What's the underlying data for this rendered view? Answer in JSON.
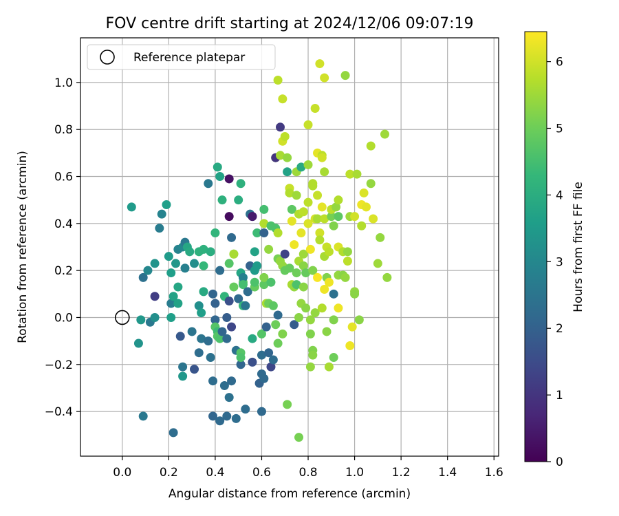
{
  "chart_data": {
    "type": "scatter",
    "title": "FOV centre drift starting at 2024/12/06 09:07:19",
    "xlabel": "Angular distance from reference (arcmin)",
    "ylabel": "Rotation from reference (arcmin)",
    "xlim": [
      -0.18,
      1.62
    ],
    "ylim": [
      -0.59,
      1.19
    ],
    "xticks": [
      0.0,
      0.2,
      0.4,
      0.6,
      0.8,
      1.0,
      1.2,
      1.4,
      1.6
    ],
    "xtick_labels": [
      "0.0",
      "0.2",
      "0.4",
      "0.6",
      "0.8",
      "1.0",
      "1.2",
      "1.4",
      "1.6"
    ],
    "yticks": [
      -0.4,
      -0.2,
      0.0,
      0.2,
      0.4,
      0.6,
      0.8,
      1.0
    ],
    "ytick_labels": [
      "−0.4",
      "−0.2",
      "0.0",
      "0.2",
      "0.4",
      "0.6",
      "0.8",
      "1.0"
    ],
    "grid": true,
    "legend": {
      "position": "top-left",
      "label": "Reference platepar"
    },
    "reference_point": {
      "x": 0.0,
      "y": 0.0
    },
    "colorbar": {
      "label": "Hours from first FF file",
      "range": [
        0,
        6.45
      ],
      "ticks": [
        0,
        1,
        2,
        3,
        4,
        5,
        6
      ],
      "tick_labels": [
        "0",
        "1",
        "2",
        "3",
        "4",
        "5",
        "6"
      ],
      "colormap": "viridis"
    },
    "colors": {
      "viridis": [
        "#440154",
        "#482878",
        "#3e4989",
        "#31688e",
        "#26828e",
        "#1f9e89",
        "#35b779",
        "#6ece58",
        "#b5de2b",
        "#fde725"
      ],
      "grid": "#b0b0b0",
      "axes": "#000000"
    },
    "points": [
      {
        "x": 0.04,
        "y": 0.47,
        "h": 3.5
      },
      {
        "x": 0.08,
        "y": -0.01,
        "h": 3.4
      },
      {
        "x": 0.07,
        "y": -0.11,
        "h": 3.3
      },
      {
        "x": 0.09,
        "y": -0.42,
        "h": 2.6
      },
      {
        "x": 0.09,
        "y": 0.17,
        "h": 2.4
      },
      {
        "x": 0.11,
        "y": 0.2,
        "h": 3.0
      },
      {
        "x": 0.12,
        "y": -0.02,
        "h": 2.6
      },
      {
        "x": 0.14,
        "y": 0.09,
        "h": 1.2
      },
      {
        "x": 0.14,
        "y": 0.23,
        "h": 3.3
      },
      {
        "x": 0.14,
        "y": 0.0,
        "h": 3.2
      },
      {
        "x": 0.16,
        "y": 0.38,
        "h": 2.7
      },
      {
        "x": 0.17,
        "y": 0.44,
        "h": 2.9
      },
      {
        "x": 0.19,
        "y": 0.48,
        "h": 3.6
      },
      {
        "x": 0.2,
        "y": 0.26,
        "h": 3.5
      },
      {
        "x": 0.21,
        "y": 0.19,
        "h": 3.6
      },
      {
        "x": 0.21,
        "y": 0.06,
        "h": 2.7
      },
      {
        "x": 0.22,
        "y": 0.09,
        "h": 3.7
      },
      {
        "x": 0.21,
        "y": 0.0,
        "h": 3.6
      },
      {
        "x": 0.22,
        "y": -0.49,
        "h": 2.3
      },
      {
        "x": 0.23,
        "y": 0.23,
        "h": 3.4
      },
      {
        "x": 0.24,
        "y": 0.13,
        "h": 3.8
      },
      {
        "x": 0.24,
        "y": 0.06,
        "h": 3.7
      },
      {
        "x": 0.24,
        "y": 0.29,
        "h": 2.9
      },
      {
        "x": 0.25,
        "y": -0.08,
        "h": 1.8
      },
      {
        "x": 0.26,
        "y": -0.21,
        "h": 2.5
      },
      {
        "x": 0.26,
        "y": -0.25,
        "h": 3.4
      },
      {
        "x": 0.26,
        "y": 0.3,
        "h": 3.0
      },
      {
        "x": 0.27,
        "y": 0.32,
        "h": 2.6
      },
      {
        "x": 0.27,
        "y": 0.21,
        "h": 2.8
      },
      {
        "x": 0.28,
        "y": 0.3,
        "h": 3.8
      },
      {
        "x": 0.29,
        "y": 0.28,
        "h": 3.9
      },
      {
        "x": 0.3,
        "y": -0.06,
        "h": 2.5
      },
      {
        "x": 0.31,
        "y": 0.23,
        "h": 3.2
      },
      {
        "x": 0.31,
        "y": -0.22,
        "h": 1.7
      },
      {
        "x": 0.33,
        "y": -0.15,
        "h": 2.3
      },
      {
        "x": 0.33,
        "y": 0.05,
        "h": 3.2
      },
      {
        "x": 0.33,
        "y": 0.28,
        "h": 4.1
      },
      {
        "x": 0.34,
        "y": 0.02,
        "h": 3.6
      },
      {
        "x": 0.34,
        "y": -0.09,
        "h": 2.5
      },
      {
        "x": 0.35,
        "y": 0.22,
        "h": 4.3
      },
      {
        "x": 0.35,
        "y": 0.29,
        "h": 4.1
      },
      {
        "x": 0.35,
        "y": 0.11,
        "h": 3.9
      },
      {
        "x": 0.37,
        "y": -0.1,
        "h": 2.3
      },
      {
        "x": 0.37,
        "y": 0.57,
        "h": 2.6
      },
      {
        "x": 0.38,
        "y": -0.17,
        "h": 2.4
      },
      {
        "x": 0.38,
        "y": 0.28,
        "h": 4.0
      },
      {
        "x": 0.39,
        "y": 0.1,
        "h": 2.1
      },
      {
        "x": 0.39,
        "y": -0.27,
        "h": 2.3
      },
      {
        "x": 0.4,
        "y": 0.36,
        "h": 4.2
      },
      {
        "x": 0.39,
        "y": -0.42,
        "h": 2.1
      },
      {
        "x": 0.4,
        "y": 0.06,
        "h": 2.0
      },
      {
        "x": 0.4,
        "y": -0.01,
        "h": 2.1
      },
      {
        "x": 0.4,
        "y": -0.04,
        "h": 4.7
      },
      {
        "x": 0.41,
        "y": -0.06,
        "h": 4.4
      },
      {
        "x": 0.41,
        "y": -0.08,
        "h": 4.7
      },
      {
        "x": 0.41,
        "y": 0.64,
        "h": 3.9
      },
      {
        "x": 0.42,
        "y": 0.6,
        "h": 3.7
      },
      {
        "x": 0.42,
        "y": 0.2,
        "h": 2.3
      },
      {
        "x": 0.42,
        "y": -0.09,
        "h": 4.6
      },
      {
        "x": 0.42,
        "y": -0.44,
        "h": 2.2
      },
      {
        "x": 0.43,
        "y": -0.06,
        "h": 2.1
      },
      {
        "x": 0.43,
        "y": 0.5,
        "h": 4.1
      },
      {
        "x": 0.44,
        "y": 0.09,
        "h": 4.2
      },
      {
        "x": 0.44,
        "y": -0.29,
        "h": 2.3
      },
      {
        "x": 0.45,
        "y": -0.09,
        "h": 2.2
      },
      {
        "x": 0.45,
        "y": 0.0,
        "h": 1.9
      },
      {
        "x": 0.45,
        "y": -0.42,
        "h": 2.2
      },
      {
        "x": 0.46,
        "y": 0.59,
        "h": 0.3
      },
      {
        "x": 0.46,
        "y": 0.43,
        "h": 0.2
      },
      {
        "x": 0.46,
        "y": 0.23,
        "h": 4.7
      },
      {
        "x": 0.46,
        "y": 0.07,
        "h": 1.6
      },
      {
        "x": 0.46,
        "y": -0.34,
        "h": 2.4
      },
      {
        "x": 0.47,
        "y": 0.34,
        "h": 2.2
      },
      {
        "x": 0.47,
        "y": -0.04,
        "h": 1.4
      },
      {
        "x": 0.47,
        "y": -0.27,
        "h": 2.2
      },
      {
        "x": 0.48,
        "y": 0.27,
        "h": 4.8
      },
      {
        "x": 0.48,
        "y": 0.13,
        "h": 4.9
      },
      {
        "x": 0.48,
        "y": 0.27,
        "h": 5.6
      },
      {
        "x": 0.49,
        "y": -0.43,
        "h": 2.3
      },
      {
        "x": 0.49,
        "y": -0.14,
        "h": 2.4
      },
      {
        "x": 0.5,
        "y": 0.5,
        "h": 4.0
      },
      {
        "x": 0.5,
        "y": 0.08,
        "h": 2.2
      },
      {
        "x": 0.51,
        "y": 0.57,
        "h": 4.1
      },
      {
        "x": 0.51,
        "y": -0.2,
        "h": 2.1
      },
      {
        "x": 0.51,
        "y": 0.19,
        "h": 3.8
      },
      {
        "x": 0.51,
        "y": -0.15,
        "h": 4.7
      },
      {
        "x": 0.51,
        "y": -0.17,
        "h": 4.6
      },
      {
        "x": 0.52,
        "y": 0.15,
        "h": 4.8
      },
      {
        "x": 0.52,
        "y": 0.17,
        "h": 2.8
      },
      {
        "x": 0.52,
        "y": 0.14,
        "h": 4.5
      },
      {
        "x": 0.52,
        "y": 0.05,
        "h": 4.3
      },
      {
        "x": 0.53,
        "y": -0.39,
        "h": 2.3
      },
      {
        "x": 0.53,
        "y": 0.05,
        "h": 2.5
      },
      {
        "x": 0.54,
        "y": 0.11,
        "h": 2.3
      },
      {
        "x": 0.55,
        "y": 0.44,
        "h": 2.4
      },
      {
        "x": 0.55,
        "y": 0.22,
        "h": 2.0
      },
      {
        "x": 0.56,
        "y": 0.43,
        "h": 0.8
      },
      {
        "x": 0.56,
        "y": 0.43,
        "h": 0.5
      },
      {
        "x": 0.56,
        "y": -0.19,
        "h": 1.6
      },
      {
        "x": 0.56,
        "y": -0.09,
        "h": 3.9
      },
      {
        "x": 0.57,
        "y": 0.2,
        "h": 3.5
      },
      {
        "x": 0.57,
        "y": 0.28,
        "h": 3.7
      },
      {
        "x": 0.57,
        "y": 0.13,
        "h": 4.9
      },
      {
        "x": 0.57,
        "y": 0.15,
        "h": 4.6
      },
      {
        "x": 0.58,
        "y": 0.36,
        "h": 4.4
      },
      {
        "x": 0.58,
        "y": 0.22,
        "h": 3.5
      },
      {
        "x": 0.59,
        "y": -0.28,
        "h": 2.0
      },
      {
        "x": 0.6,
        "y": -0.4,
        "h": 2.2
      },
      {
        "x": 0.6,
        "y": -0.24,
        "h": 2.2
      },
      {
        "x": 0.6,
        "y": -0.07,
        "h": 4.7
      },
      {
        "x": 0.6,
        "y": -0.16,
        "h": 2.3
      },
      {
        "x": 0.61,
        "y": 0.14,
        "h": 4.8
      },
      {
        "x": 0.61,
        "y": 0.46,
        "h": 4.5
      },
      {
        "x": 0.61,
        "y": 0.4,
        "h": 5.7
      },
      {
        "x": 0.61,
        "y": 0.36,
        "h": 2.0
      },
      {
        "x": 0.61,
        "y": 0.17,
        "h": 5.2
      },
      {
        "x": 0.61,
        "y": -0.26,
        "h": 2.2
      },
      {
        "x": 0.62,
        "y": -0.04,
        "h": 2.0
      },
      {
        "x": 0.62,
        "y": 0.06,
        "h": 5.6
      },
      {
        "x": 0.63,
        "y": 0.06,
        "h": 5.0
      },
      {
        "x": 0.63,
        "y": -0.15,
        "h": 2.1
      },
      {
        "x": 0.63,
        "y": 0.29,
        "h": 5.4
      },
      {
        "x": 0.64,
        "y": -0.21,
        "h": 1.4
      },
      {
        "x": 0.64,
        "y": 0.15,
        "h": 4.6
      },
      {
        "x": 0.64,
        "y": 0.39,
        "h": 4.6
      },
      {
        "x": 0.65,
        "y": -0.18,
        "h": 2.3
      },
      {
        "x": 0.65,
        "y": 0.05,
        "h": 4.8
      },
      {
        "x": 0.66,
        "y": 0.68,
        "h": 5.4
      },
      {
        "x": 0.66,
        "y": 0.38,
        "h": 4.6
      },
      {
        "x": 0.66,
        "y": -0.03,
        "h": 5.0
      },
      {
        "x": 0.66,
        "y": 0.68,
        "h": 1.0
      },
      {
        "x": 0.67,
        "y": 0.25,
        "h": 5.1
      },
      {
        "x": 0.67,
        "y": 0.36,
        "h": 5.7
      },
      {
        "x": 0.67,
        "y": -0.11,
        "h": 5.0
      },
      {
        "x": 0.67,
        "y": 0.01,
        "h": 2.2
      },
      {
        "x": 0.67,
        "y": 1.01,
        "h": 5.8
      },
      {
        "x": 0.68,
        "y": 0.81,
        "h": 1.1
      },
      {
        "x": 0.68,
        "y": 0.24,
        "h": 5.4
      },
      {
        "x": 0.68,
        "y": 0.69,
        "h": 5.6
      },
      {
        "x": 0.69,
        "y": 0.75,
        "h": 6.0
      },
      {
        "x": 0.69,
        "y": 0.93,
        "h": 5.9
      },
      {
        "x": 0.69,
        "y": -0.07,
        "h": 5.2
      },
      {
        "x": 0.69,
        "y": 0.22,
        "h": 5.4
      },
      {
        "x": 0.7,
        "y": 0.2,
        "h": 4.9
      },
      {
        "x": 0.7,
        "y": 0.77,
        "h": 5.8
      },
      {
        "x": 0.7,
        "y": 0.27,
        "h": 1.3
      },
      {
        "x": 0.71,
        "y": 0.68,
        "h": 5.4
      },
      {
        "x": 0.71,
        "y": -0.37,
        "h": 5.1
      },
      {
        "x": 0.71,
        "y": 0.62,
        "h": 3.7
      },
      {
        "x": 0.72,
        "y": 0.55,
        "h": 5.9
      },
      {
        "x": 0.72,
        "y": 0.53,
        "h": 5.7
      },
      {
        "x": 0.72,
        "y": 0.21,
        "h": 4.9
      },
      {
        "x": 0.73,
        "y": 0.46,
        "h": 4.8
      },
      {
        "x": 0.73,
        "y": 0.41,
        "h": 6.2
      },
      {
        "x": 0.73,
        "y": 0.14,
        "h": 5.6
      },
      {
        "x": 0.74,
        "y": 0.31,
        "h": 6.3
      },
      {
        "x": 0.74,
        "y": -0.03,
        "h": 1.9
      },
      {
        "x": 0.74,
        "y": 0.13,
        "h": 5.4
      },
      {
        "x": 0.75,
        "y": 0.62,
        "h": 5.5
      },
      {
        "x": 0.75,
        "y": 0.19,
        "h": 5.0
      },
      {
        "x": 0.75,
        "y": 0.14,
        "h": 4.6
      },
      {
        "x": 0.75,
        "y": 0.52,
        "h": 5.5
      },
      {
        "x": 0.76,
        "y": -0.51,
        "h": 5.1
      },
      {
        "x": 0.76,
        "y": 0.0,
        "h": 5.3
      },
      {
        "x": 0.76,
        "y": 0.24,
        "h": 5.6
      },
      {
        "x": 0.76,
        "y": 0.44,
        "h": 5.7
      },
      {
        "x": 0.77,
        "y": 0.06,
        "h": 5.4
      },
      {
        "x": 0.77,
        "y": 0.64,
        "h": 3.9
      },
      {
        "x": 0.77,
        "y": 0.36,
        "h": 6.2
      },
      {
        "x": 0.78,
        "y": 0.22,
        "h": 5.3
      },
      {
        "x": 0.78,
        "y": 0.45,
        "h": 5.8
      },
      {
        "x": 0.78,
        "y": 0.27,
        "h": 5.5
      },
      {
        "x": 0.78,
        "y": 0.13,
        "h": 5.3
      },
      {
        "x": 0.79,
        "y": 0.04,
        "h": 5.3
      },
      {
        "x": 0.79,
        "y": 0.19,
        "h": 4.9
      },
      {
        "x": 0.8,
        "y": 0.65,
        "h": 5.5
      },
      {
        "x": 0.8,
        "y": 0.82,
        "h": 5.9
      },
      {
        "x": 0.8,
        "y": 0.49,
        "h": 5.8
      },
      {
        "x": 0.8,
        "y": 0.4,
        "h": 6.1
      },
      {
        "x": 0.81,
        "y": -0.07,
        "h": 5.2
      },
      {
        "x": 0.81,
        "y": 0.29,
        "h": 6.3
      },
      {
        "x": 0.81,
        "y": -0.21,
        "h": 5.4
      },
      {
        "x": 0.81,
        "y": -0.01,
        "h": 5.4
      },
      {
        "x": 0.82,
        "y": 0.57,
        "h": 5.7
      },
      {
        "x": 0.82,
        "y": -0.14,
        "h": 5.2
      },
      {
        "x": 0.82,
        "y": -0.16,
        "h": 5.3
      },
      {
        "x": 0.82,
        "y": 0.2,
        "h": 5.2
      },
      {
        "x": 0.82,
        "y": 0.56,
        "h": 5.7
      },
      {
        "x": 0.83,
        "y": 0.89,
        "h": 5.9
      },
      {
        "x": 0.83,
        "y": 0.42,
        "h": 6.0
      },
      {
        "x": 0.83,
        "y": 0.02,
        "h": 5.4
      },
      {
        "x": 0.84,
        "y": 0.17,
        "h": 6.4
      },
      {
        "x": 0.84,
        "y": 0.7,
        "h": 6.2
      },
      {
        "x": 0.84,
        "y": 0.52,
        "h": 5.9
      },
      {
        "x": 0.84,
        "y": 0.42,
        "h": 5.6
      },
      {
        "x": 0.85,
        "y": 1.08,
        "h": 6.0
      },
      {
        "x": 0.85,
        "y": 0.36,
        "h": 6.0
      },
      {
        "x": 0.85,
        "y": 0.33,
        "h": 5.7
      },
      {
        "x": 0.86,
        "y": 0.47,
        "h": 6.2
      },
      {
        "x": 0.86,
        "y": 0.04,
        "h": 5.7
      },
      {
        "x": 0.86,
        "y": 0.69,
        "h": 5.8
      },
      {
        "x": 0.86,
        "y": 0.68,
        "h": 6.0
      },
      {
        "x": 0.87,
        "y": 1.02,
        "h": 6.0
      },
      {
        "x": 0.87,
        "y": 0.62,
        "h": 5.6
      },
      {
        "x": 0.87,
        "y": 0.12,
        "h": 6.3
      },
      {
        "x": 0.87,
        "y": 0.42,
        "h": 5.8
      },
      {
        "x": 0.87,
        "y": 0.26,
        "h": 5.6
      },
      {
        "x": 0.88,
        "y": -0.06,
        "h": 5.3
      },
      {
        "x": 0.88,
        "y": 0.17,
        "h": 5.2
      },
      {
        "x": 0.88,
        "y": 0.3,
        "h": 5.9
      },
      {
        "x": 0.89,
        "y": -0.21,
        "h": 5.6
      },
      {
        "x": 0.89,
        "y": 0.28,
        "h": 5.8
      },
      {
        "x": 0.89,
        "y": 0.15,
        "h": 6.3
      },
      {
        "x": 0.9,
        "y": 0.43,
        "h": 5.1
      },
      {
        "x": 0.9,
        "y": 0.46,
        "h": 5.8
      },
      {
        "x": 0.91,
        "y": -0.01,
        "h": 5.2
      },
      {
        "x": 0.91,
        "y": 0.39,
        "h": 5.2
      },
      {
        "x": 0.91,
        "y": -0.17,
        "h": 5.0
      },
      {
        "x": 0.91,
        "y": 0.1,
        "h": 2.4
      },
      {
        "x": 0.92,
        "y": 0.47,
        "h": 5.4
      },
      {
        "x": 0.93,
        "y": 0.04,
        "h": 6.3
      },
      {
        "x": 0.93,
        "y": 0.43,
        "h": 4.8
      },
      {
        "x": 0.93,
        "y": 0.5,
        "h": 5.7
      },
      {
        "x": 0.93,
        "y": 0.3,
        "h": 6.1
      },
      {
        "x": 0.93,
        "y": 0.18,
        "h": 5.4
      },
      {
        "x": 0.95,
        "y": 0.18,
        "h": 5.3
      },
      {
        "x": 0.95,
        "y": 0.28,
        "h": 5.7
      },
      {
        "x": 0.96,
        "y": 1.03,
        "h": 5.4
      },
      {
        "x": 0.96,
        "y": 0.17,
        "h": 5.4
      },
      {
        "x": 0.97,
        "y": 0.28,
        "h": 5.4
      },
      {
        "x": 0.97,
        "y": 0.24,
        "h": 5.8
      },
      {
        "x": 0.98,
        "y": -0.12,
        "h": 6.3
      },
      {
        "x": 0.98,
        "y": 0.61,
        "h": 5.8
      },
      {
        "x": 0.98,
        "y": 0.43,
        "h": 5.5
      },
      {
        "x": 0.99,
        "y": -0.04,
        "h": 6.2
      },
      {
        "x": 1.0,
        "y": 0.11,
        "h": 5.4
      },
      {
        "x": 1.0,
        "y": 0.1,
        "h": 5.3
      },
      {
        "x": 1.0,
        "y": 0.43,
        "h": 6.0
      },
      {
        "x": 1.01,
        "y": 0.61,
        "h": 5.6
      },
      {
        "x": 1.02,
        "y": -0.01,
        "h": 5.3
      },
      {
        "x": 1.03,
        "y": 0.39,
        "h": 5.7
      },
      {
        "x": 1.03,
        "y": 0.48,
        "h": 6.3
      },
      {
        "x": 1.04,
        "y": 0.53,
        "h": 6.1
      },
      {
        "x": 1.05,
        "y": 0.47,
        "h": 6.2
      },
      {
        "x": 1.07,
        "y": 0.57,
        "h": 5.4
      },
      {
        "x": 1.07,
        "y": 0.73,
        "h": 5.7
      },
      {
        "x": 1.08,
        "y": 0.42,
        "h": 6.1
      },
      {
        "x": 1.1,
        "y": 0.23,
        "h": 5.5
      },
      {
        "x": 1.11,
        "y": 0.34,
        "h": 5.4
      },
      {
        "x": 1.13,
        "y": 0.78,
        "h": 5.5
      },
      {
        "x": 1.14,
        "y": 0.17,
        "h": 5.4
      }
    ]
  }
}
